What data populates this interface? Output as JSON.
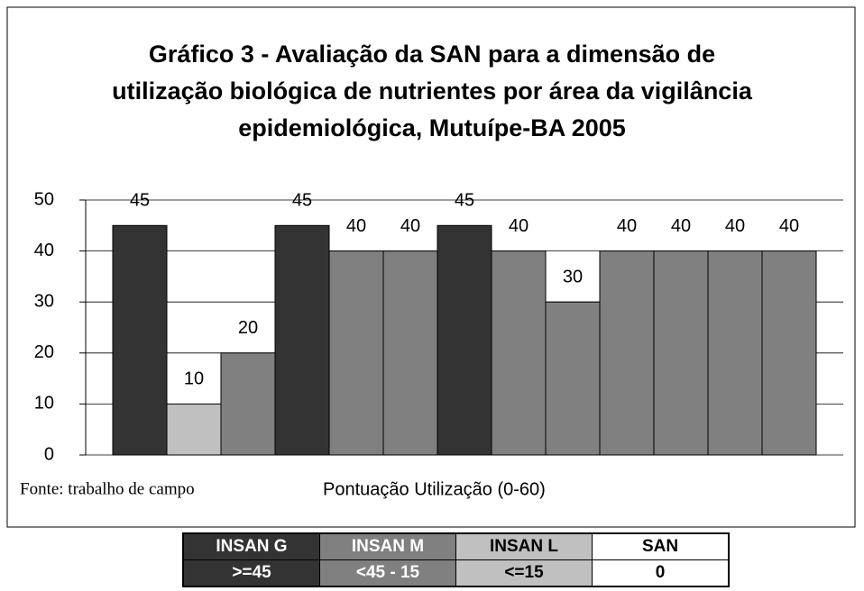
{
  "chart_data": {
    "type": "bar",
    "title": "Gráfico 3 - Avaliação da SAN para a dimensão de utilização biológica de nutrientes por área da vigilância epidemiológica, Mutuípe-BA 2005",
    "xlabel": "Pontuação Utilização (0-60)",
    "source": "Fonte: trabalho de campo",
    "categories": [
      null,
      null,
      null,
      null,
      null,
      null,
      null,
      null,
      null,
      null,
      null,
      null,
      null
    ],
    "values": [
      45,
      10,
      20,
      45,
      40,
      40,
      45,
      40,
      30,
      40,
      40,
      40,
      40
    ],
    "colors": [
      "#333333",
      "#c0c0c0",
      "#808080",
      "#333333",
      "#808080",
      "#808080",
      "#333333",
      "#808080",
      "#808080",
      "#808080",
      "#808080",
      "#808080",
      "#808080"
    ],
    "ylim": [
      0,
      50
    ],
    "yticks": [
      0,
      10,
      20,
      30,
      40,
      50
    ],
    "grid": true,
    "legend_table": {
      "headers": [
        "INSAN G",
        "INSAN M",
        "INSAN L",
        "SAN"
      ],
      "ranges": [
        ">=45",
        "<45 - 15",
        "<=15",
        "0"
      ],
      "colors": [
        "#333333",
        "#808080",
        "#c0c0c0",
        "#ffffff"
      ]
    }
  }
}
